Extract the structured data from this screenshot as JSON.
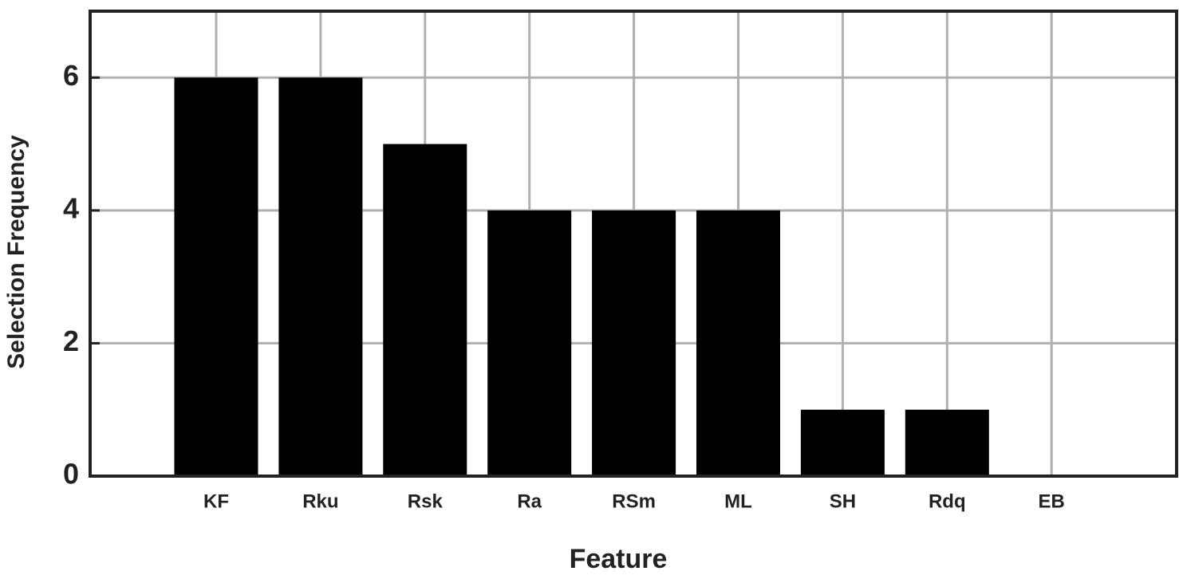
{
  "chart_data": {
    "type": "bar",
    "xlabel": "Feature",
    "ylabel": "Selection Frequency",
    "categories": [
      "KF",
      "Rku",
      "Rsk",
      "Ra",
      "RSm",
      "ML",
      "SH",
      "Rdq",
      "EB"
    ],
    "values": [
      6,
      6,
      5,
      4,
      4,
      4,
      1,
      1,
      0
    ],
    "color": "#000000",
    "ylim": [
      0,
      7
    ],
    "yticks": [
      0,
      2,
      4,
      6
    ],
    "grid": true
  }
}
